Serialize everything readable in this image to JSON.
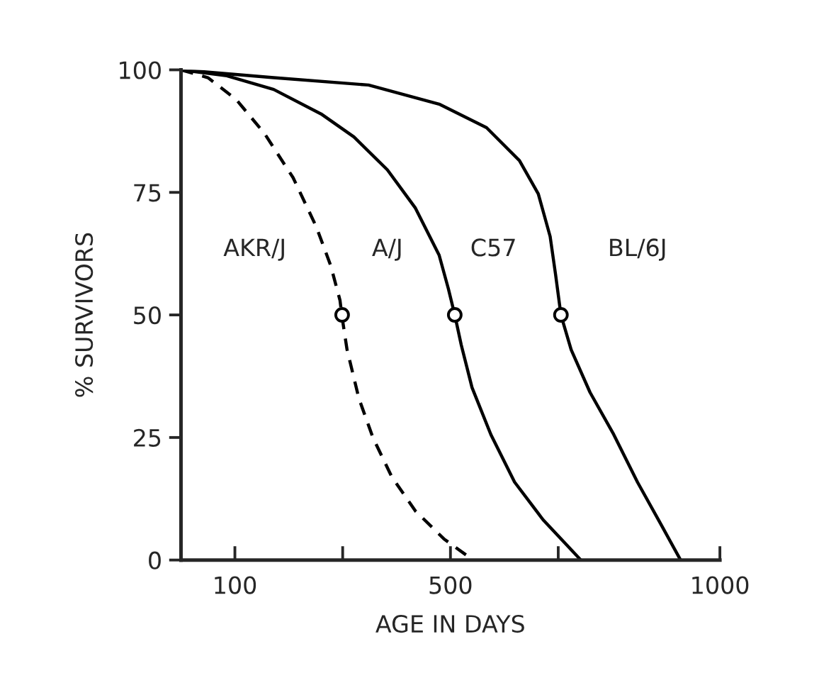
{
  "chart_data": {
    "type": "line",
    "xlabel": "AGE IN DAYS",
    "ylabel": "% SURVIVORS",
    "xlim": [
      0,
      1000
    ],
    "ylim": [
      0,
      100
    ],
    "xticks": [
      100,
      {
        "value": 300,
        "label": null
      },
      500,
      {
        "value": 700,
        "label": null
      },
      1000
    ],
    "yticks": [
      0,
      25,
      50,
      75,
      100
    ],
    "grid": false,
    "legend": false,
    "series": [
      {
        "line_style": "dashed",
        "color": "#000000",
        "x": [
          0,
          50,
          102,
          155,
          208,
          251,
          278,
          295,
          299,
          308,
          330,
          356,
          391,
          435,
          488,
          542
        ],
        "values": [
          100,
          98.4,
          94,
          87,
          78,
          68,
          60,
          53,
          49.5,
          43,
          33,
          25,
          17,
          10,
          4.3,
          0
        ]
      },
      {
        "line_style": "solid",
        "color": "#000000",
        "x": [
          0,
          85,
          172,
          260,
          321,
          383,
          435,
          479,
          496,
          508,
          520,
          540,
          575,
          619,
          672,
          742
        ],
        "values": [
          100,
          98.8,
          96,
          91,
          86.3,
          79.6,
          71.8,
          62.2,
          55.4,
          50,
          43.9,
          35.2,
          25.6,
          15.9,
          8.2,
          0
        ]
      },
      {
        "line_style": "solid",
        "color": "#000000",
        "x": [
          0,
          172,
          348,
          479,
          567,
          628,
          663,
          685,
          695,
          705,
          724,
          759,
          803,
          847,
          891,
          927
        ],
        "values": [
          100,
          98.4,
          96.9,
          93,
          88.2,
          81.5,
          74.7,
          66,
          58.3,
          50,
          42.9,
          34.2,
          25.6,
          15.9,
          7.2,
          0
        ]
      },
      {
        "type": "scatter",
        "marker": "circle",
        "color": "#000000",
        "x": [
          299,
          508,
          705
        ],
        "values": [
          50,
          50,
          50
        ]
      }
    ],
    "annotations": [
      "AKR/J",
      "A/J",
      "C57",
      "BL/6J"
    ]
  }
}
